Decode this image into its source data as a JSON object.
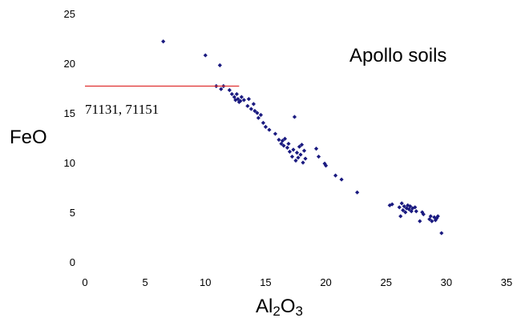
{
  "chart_data": {
    "type": "scatter",
    "title": "",
    "annotation": "Apollo soils",
    "xlabel": {
      "prefix": "Al",
      "sub1": "2",
      "mid": "O",
      "sub2": "3"
    },
    "ylabel": "FeO",
    "xlim": [
      0,
      35
    ],
    "ylim": [
      0,
      25
    ],
    "xticks": [
      "0",
      "5",
      "10",
      "15",
      "20",
      "25",
      "30",
      "35"
    ],
    "yticks": [
      "0",
      "5",
      "10",
      "15",
      "20",
      "25"
    ],
    "grid": false,
    "legend": "none",
    "marker_color": "#1a1a80",
    "reference_line": {
      "label": "71131, 71151",
      "y": 17.7,
      "x_start": 0,
      "x_end": 12.8,
      "color": "#e03030"
    },
    "points": [
      [
        6.5,
        22.2
      ],
      [
        10.0,
        20.8
      ],
      [
        11.2,
        19.8
      ],
      [
        10.9,
        17.7
      ],
      [
        11.3,
        17.4
      ],
      [
        11.5,
        17.7
      ],
      [
        12.0,
        17.3
      ],
      [
        12.2,
        16.9
      ],
      [
        12.4,
        16.6
      ],
      [
        12.6,
        16.9
      ],
      [
        12.7,
        16.4
      ],
      [
        12.9,
        16.2
      ],
      [
        13.0,
        16.6
      ],
      [
        13.2,
        16.3
      ],
      [
        12.8,
        16.1
      ],
      [
        12.5,
        16.3
      ],
      [
        13.5,
        15.7
      ],
      [
        13.6,
        16.4
      ],
      [
        13.8,
        15.4
      ],
      [
        14.0,
        15.9
      ],
      [
        14.1,
        15.2
      ],
      [
        14.3,
        15.0
      ],
      [
        14.4,
        14.5
      ],
      [
        14.6,
        14.8
      ],
      [
        14.8,
        14.0
      ],
      [
        15.0,
        13.6
      ],
      [
        15.3,
        13.3
      ],
      [
        15.8,
        12.9
      ],
      [
        16.1,
        12.3
      ],
      [
        16.3,
        11.9
      ],
      [
        16.4,
        12.2
      ],
      [
        16.5,
        11.7
      ],
      [
        16.6,
        12.4
      ],
      [
        16.8,
        11.5
      ],
      [
        16.9,
        11.9
      ],
      [
        17.0,
        11.1
      ],
      [
        17.2,
        10.6
      ],
      [
        17.3,
        11.3
      ],
      [
        17.4,
        14.6
      ],
      [
        17.5,
        10.2
      ],
      [
        17.6,
        11.0
      ],
      [
        17.7,
        10.5
      ],
      [
        17.8,
        11.6
      ],
      [
        17.9,
        10.8
      ],
      [
        18.0,
        11.8
      ],
      [
        18.1,
        10.0
      ],
      [
        18.2,
        11.2
      ],
      [
        18.3,
        10.4
      ],
      [
        19.2,
        11.4
      ],
      [
        19.4,
        10.6
      ],
      [
        19.9,
        9.9
      ],
      [
        20.0,
        9.7
      ],
      [
        20.8,
        8.7
      ],
      [
        21.3,
        8.3
      ],
      [
        22.6,
        7.0
      ],
      [
        25.3,
        5.7
      ],
      [
        25.5,
        5.8
      ],
      [
        26.1,
        5.5
      ],
      [
        26.2,
        4.6
      ],
      [
        26.3,
        5.9
      ],
      [
        26.4,
        5.2
      ],
      [
        26.5,
        5.6
      ],
      [
        26.6,
        5.0
      ],
      [
        26.7,
        5.4
      ],
      [
        26.8,
        5.7
      ],
      [
        26.9,
        5.3
      ],
      [
        27.0,
        5.6
      ],
      [
        27.1,
        5.1
      ],
      [
        27.2,
        5.4
      ],
      [
        27.4,
        5.5
      ],
      [
        27.5,
        5.1
      ],
      [
        27.8,
        4.1
      ],
      [
        28.0,
        5.0
      ],
      [
        28.1,
        4.8
      ],
      [
        28.6,
        4.3
      ],
      [
        28.7,
        4.6
      ],
      [
        28.8,
        4.1
      ],
      [
        29.0,
        4.5
      ],
      [
        29.1,
        4.2
      ],
      [
        29.2,
        4.4
      ],
      [
        29.3,
        4.6
      ],
      [
        29.6,
        2.9
      ]
    ]
  }
}
